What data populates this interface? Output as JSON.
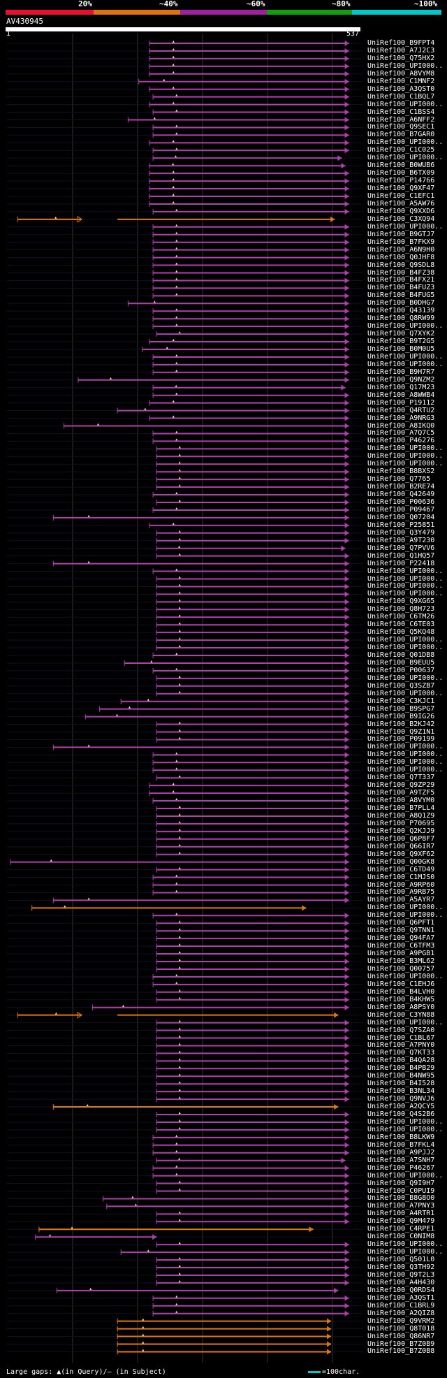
{
  "query": {
    "name": "AV430945",
    "start_label": "1",
    "end_label": "537"
  },
  "legend": {
    "stops": [
      "20%",
      "~40%",
      "~60%",
      "~80%",
      "~100%"
    ],
    "colors": [
      "#e8102c",
      "#e07010",
      "#a020a0",
      "#10a010",
      "#00c8c8"
    ]
  },
  "footer": {
    "gaps_text": "Large gaps: ▲(in Query)/– (in Subject)",
    "scale_text": "=100char."
  },
  "colors": {
    "identity_60": "#b040b0",
    "identity_40": "#e07818",
    "gap_marker": "#ffe890",
    "grid": "#333333"
  },
  "hits": [
    {
      "label": "UniRef100_B9FPT4",
      "s": 0.4,
      "e": 0.96,
      "t": "m"
    },
    {
      "label": "UniRef100_A7J2C3",
      "s": 0.4,
      "e": 0.96,
      "t": "m"
    },
    {
      "label": "UniRef100_Q75HX2",
      "s": 0.4,
      "e": 0.96,
      "t": "m"
    },
    {
      "label": "UniRef100_UPI000..",
      "s": 0.4,
      "e": 0.96,
      "t": "m"
    },
    {
      "label": "UniRef100_A8VYM8",
      "s": 0.4,
      "e": 0.96,
      "t": "m"
    },
    {
      "label": "UniRef100_C1MNF2",
      "s": 0.37,
      "e": 0.96,
      "t": "m"
    },
    {
      "label": "UniRef100_A3QST0",
      "s": 0.4,
      "e": 0.96,
      "t": "m"
    },
    {
      "label": "UniRef100_C1BQL7",
      "s": 0.41,
      "e": 0.96,
      "t": "m"
    },
    {
      "label": "UniRef100_UPI000..",
      "s": 0.4,
      "e": 0.96,
      "t": "m"
    },
    {
      "label": "UniRef100_C1BSS4",
      "s": 0.41,
      "e": 0.96,
      "t": "m"
    },
    {
      "label": "UniRef100_A6NFF2",
      "s": 0.34,
      "e": 0.96,
      "t": "m"
    },
    {
      "label": "UniRef100_Q9SEC1",
      "s": 0.41,
      "e": 0.96,
      "t": "m"
    },
    {
      "label": "UniRef100_B7GAR0",
      "s": 0.41,
      "e": 0.96,
      "t": "m"
    },
    {
      "label": "UniRef100_UPI000..",
      "s": 0.4,
      "e": 0.96,
      "t": "m"
    },
    {
      "label": "UniRef100_C1C025",
      "s": 0.41,
      "e": 0.96,
      "t": "m"
    },
    {
      "label": "UniRef100_UPI000..",
      "s": 0.41,
      "e": 0.94,
      "t": "m"
    },
    {
      "label": "UniRef100_B0WUB6",
      "s": 0.4,
      "e": 0.95,
      "t": "m"
    },
    {
      "label": "UniRef100_B6TX09",
      "s": 0.4,
      "e": 0.96,
      "t": "m"
    },
    {
      "label": "UniRef100_P14766",
      "s": 0.4,
      "e": 0.96,
      "t": "m"
    },
    {
      "label": "UniRef100_Q9XF47",
      "s": 0.4,
      "e": 0.96,
      "t": "m"
    },
    {
      "label": "UniRef100_C1EFC1",
      "s": 0.4,
      "e": 0.96,
      "t": "m"
    },
    {
      "label": "UniRef100_A5AW76",
      "s": 0.4,
      "e": 0.96,
      "t": "m"
    },
    {
      "label": "UniRef100_Q9XXD6",
      "s": 0.41,
      "e": 0.96,
      "t": "m"
    },
    {
      "label": "UniRef100_C3XQ94",
      "s": 0.03,
      "e": 0.92,
      "t": "o",
      "gap": [
        0.21,
        0.31
      ]
    },
    {
      "label": "UniRef100_UPI000..",
      "s": 0.41,
      "e": 0.96,
      "t": "m"
    },
    {
      "label": "UniRef100_B9GTJ7",
      "s": 0.41,
      "e": 0.96,
      "t": "m"
    },
    {
      "label": "UniRef100_B7FKX9",
      "s": 0.41,
      "e": 0.96,
      "t": "m"
    },
    {
      "label": "UniRef100_A6N9H0",
      "s": 0.41,
      "e": 0.96,
      "t": "m"
    },
    {
      "label": "UniRef100_Q0JHF8",
      "s": 0.41,
      "e": 0.96,
      "t": "m"
    },
    {
      "label": "UniRef100_Q9SDL8",
      "s": 0.41,
      "e": 0.96,
      "t": "m"
    },
    {
      "label": "UniRef100_B4FZ38",
      "s": 0.41,
      "e": 0.96,
      "t": "m"
    },
    {
      "label": "UniRef100_B4FX21",
      "s": 0.41,
      "e": 0.96,
      "t": "m"
    },
    {
      "label": "UniRef100_B4FUZ3",
      "s": 0.41,
      "e": 0.96,
      "t": "m"
    },
    {
      "label": "UniRef100_B4FUG5",
      "s": 0.41,
      "e": 0.96,
      "t": "m"
    },
    {
      "label": "UniRef100_B0DHG7",
      "s": 0.34,
      "e": 0.96,
      "t": "m"
    },
    {
      "label": "UniRef100_Q43139",
      "s": 0.41,
      "e": 0.96,
      "t": "m"
    },
    {
      "label": "UniRef100_Q8RW99",
      "s": 0.41,
      "e": 0.96,
      "t": "m"
    },
    {
      "label": "UniRef100_UPI000..",
      "s": 0.41,
      "e": 0.96,
      "t": "m"
    },
    {
      "label": "UniRef100_Q7XYK2",
      "s": 0.42,
      "e": 0.96,
      "t": "m"
    },
    {
      "label": "UniRef100_B9T2G5",
      "s": 0.4,
      "e": 0.96,
      "t": "m"
    },
    {
      "label": "UniRef100_B0M0U5",
      "s": 0.38,
      "e": 0.96,
      "t": "m"
    },
    {
      "label": "UniRef100_UPI000..",
      "s": 0.41,
      "e": 0.96,
      "t": "m"
    },
    {
      "label": "UniRef100_UPI000..",
      "s": 0.41,
      "e": 0.96,
      "t": "m"
    },
    {
      "label": "UniRef100_B9H7R7",
      "s": 0.41,
      "e": 0.96,
      "t": "m"
    },
    {
      "label": "UniRef100_Q9NZM2",
      "s": 0.2,
      "e": 0.96,
      "t": "m"
    },
    {
      "label": "UniRef100_Q17M23",
      "s": 0.41,
      "e": 0.95,
      "t": "m"
    },
    {
      "label": "UniRef100_A8WWB4",
      "s": 0.41,
      "e": 0.96,
      "t": "m"
    },
    {
      "label": "UniRef100_P19112",
      "s": 0.4,
      "e": 0.96,
      "t": "m"
    },
    {
      "label": "UniRef100_Q4RTU2",
      "s": 0.31,
      "e": 0.96,
      "t": "m"
    },
    {
      "label": "UniRef100_A9NRG3",
      "s": 0.4,
      "e": 0.96,
      "t": "m"
    },
    {
      "label": "UniRef100_A8IKQ0",
      "s": 0.16,
      "e": 0.96,
      "t": "m"
    },
    {
      "label": "UniRef100_A7Q7C5",
      "s": 0.41,
      "e": 0.96,
      "t": "m"
    },
    {
      "label": "UniRef100_P46276",
      "s": 0.41,
      "e": 0.96,
      "t": "m"
    },
    {
      "label": "UniRef100_UPI000..",
      "s": 0.42,
      "e": 0.96,
      "t": "m"
    },
    {
      "label": "UniRef100_UPI000..",
      "s": 0.42,
      "e": 0.96,
      "t": "m"
    },
    {
      "label": "UniRef100_UPI000..",
      "s": 0.42,
      "e": 0.96,
      "t": "m"
    },
    {
      "label": "UniRef100_B8BXS2",
      "s": 0.42,
      "e": 0.96,
      "t": "m"
    },
    {
      "label": "UniRef100_Q7765",
      "s": 0.42,
      "e": 0.96,
      "t": "m"
    },
    {
      "label": "UniRef100_B2RE74",
      "s": 0.42,
      "e": 0.96,
      "t": "m"
    },
    {
      "label": "UniRef100_Q42649",
      "s": 0.41,
      "e": 0.96,
      "t": "m"
    },
    {
      "label": "UniRef100_P00636",
      "s": 0.42,
      "e": 0.96,
      "t": "m"
    },
    {
      "label": "UniRef100_P09467",
      "s": 0.41,
      "e": 0.96,
      "t": "m"
    },
    {
      "label": "UniRef100_Q07204",
      "s": 0.13,
      "e": 0.96,
      "t": "m"
    },
    {
      "label": "UniRef100_P25851",
      "s": 0.4,
      "e": 0.96,
      "t": "m"
    },
    {
      "label": "UniRef100_Q3Y479",
      "s": 0.42,
      "e": 0.96,
      "t": "m"
    },
    {
      "label": "UniRef100_A9T230",
      "s": 0.42,
      "e": 0.96,
      "t": "m"
    },
    {
      "label": "UniRef100_Q7PVV6",
      "s": 0.42,
      "e": 0.95,
      "t": "m"
    },
    {
      "label": "UniRef100_Q1HQ57",
      "s": 0.42,
      "e": 0.96,
      "t": "m"
    },
    {
      "label": "UniRef100_P22418",
      "s": 0.13,
      "e": 0.96,
      "t": "m"
    },
    {
      "label": "UniRef100_UPI000..",
      "s": 0.41,
      "e": 0.96,
      "t": "m"
    },
    {
      "label": "UniRef100_UPI000..",
      "s": 0.42,
      "e": 0.96,
      "t": "m"
    },
    {
      "label": "UniRef100_UPI000..",
      "s": 0.42,
      "e": 0.96,
      "t": "m"
    },
    {
      "label": "UniRef100_UPI000..",
      "s": 0.42,
      "e": 0.96,
      "t": "m"
    },
    {
      "label": "UniRef100_Q9XG65",
      "s": 0.42,
      "e": 0.96,
      "t": "m"
    },
    {
      "label": "UniRef100_Q8H723",
      "s": 0.42,
      "e": 0.96,
      "t": "m"
    },
    {
      "label": "UniRef100_C6TM26",
      "s": 0.42,
      "e": 0.96,
      "t": "m"
    },
    {
      "label": "UniRef100_C6TE03",
      "s": 0.42,
      "e": 0.96,
      "t": "m"
    },
    {
      "label": "UniRef100_Q5KQ48",
      "s": 0.42,
      "e": 0.96,
      "t": "m"
    },
    {
      "label": "UniRef100_UPI000..",
      "s": 0.42,
      "e": 0.96,
      "t": "m"
    },
    {
      "label": "UniRef100_UPI000..",
      "s": 0.42,
      "e": 0.96,
      "t": "m"
    },
    {
      "label": "UniRef100_Q01DB8",
      "s": 0.41,
      "e": 0.96,
      "t": "m"
    },
    {
      "label": "UniRef100_B9EUU5",
      "s": 0.33,
      "e": 0.96,
      "t": "m"
    },
    {
      "label": "UniRef100_P00637",
      "s": 0.41,
      "e": 0.96,
      "t": "m"
    },
    {
      "label": "UniRef100_UPI000..",
      "s": 0.42,
      "e": 0.96,
      "t": "m"
    },
    {
      "label": "UniRef100_Q3SZB7",
      "s": 0.42,
      "e": 0.96,
      "t": "m"
    },
    {
      "label": "UniRef100_UPI000..",
      "s": 0.42,
      "e": 0.96,
      "t": "m"
    },
    {
      "label": "UniRef100_C3KJC1",
      "s": 0.32,
      "e": 0.96,
      "t": "m"
    },
    {
      "label": "UniRef100_B9SPG7",
      "s": 0.26,
      "e": 0.96,
      "t": "m"
    },
    {
      "label": "UniRef100_B9IG26",
      "s": 0.22,
      "e": 0.96,
      "t": "m"
    },
    {
      "label": "UniRef100_B2KJ42",
      "s": 0.42,
      "e": 0.96,
      "t": "m"
    },
    {
      "label": "UniRef100_Q9Z1N1",
      "s": 0.42,
      "e": 0.96,
      "t": "m"
    },
    {
      "label": "UniRef100_P09199",
      "s": 0.42,
      "e": 0.96,
      "t": "m"
    },
    {
      "label": "UniRef100_UPI000..",
      "s": 0.13,
      "e": 0.96,
      "t": "m"
    },
    {
      "label": "UniRef100_UPI000..",
      "s": 0.41,
      "e": 0.96,
      "t": "m"
    },
    {
      "label": "UniRef100_UPI000..",
      "s": 0.41,
      "e": 0.96,
      "t": "m"
    },
    {
      "label": "UniRef100_UPI000..",
      "s": 0.41,
      "e": 0.96,
      "t": "m"
    },
    {
      "label": "UniRef100_Q7T337",
      "s": 0.42,
      "e": 0.96,
      "t": "m"
    },
    {
      "label": "UniRef100_Q9ZP29",
      "s": 0.4,
      "e": 0.96,
      "t": "m"
    },
    {
      "label": "UniRef100_A9TZF5",
      "s": 0.4,
      "e": 0.96,
      "t": "m"
    },
    {
      "label": "UniRef100_A8VYM0",
      "s": 0.41,
      "e": 0.96,
      "t": "m"
    },
    {
      "label": "UniRef100_B7PLL4",
      "s": 0.42,
      "e": 0.96,
      "t": "m"
    },
    {
      "label": "UniRef100_A8Q1Z9",
      "s": 0.42,
      "e": 0.96,
      "t": "m"
    },
    {
      "label": "UniRef100_P70695",
      "s": 0.42,
      "e": 0.96,
      "t": "m"
    },
    {
      "label": "UniRef100_Q2KJJ9",
      "s": 0.42,
      "e": 0.96,
      "t": "m"
    },
    {
      "label": "UniRef100_Q6P8F7",
      "s": 0.42,
      "e": 0.96,
      "t": "m"
    },
    {
      "label": "UniRef100_Q66IR7",
      "s": 0.42,
      "e": 0.96,
      "t": "m"
    },
    {
      "label": "UniRef100_Q9XF62",
      "s": 0.42,
      "e": 0.96,
      "t": "m"
    },
    {
      "label": "UniRef100_Q00GK8",
      "s": 0.01,
      "e": 0.96,
      "t": "m"
    },
    {
      "label": "UniRef100_C6TD49",
      "s": 0.42,
      "e": 0.96,
      "t": "m"
    },
    {
      "label": "UniRef100_C1MJS0",
      "s": 0.41,
      "e": 0.96,
      "t": "m"
    },
    {
      "label": "UniRef100_A9RP60",
      "s": 0.41,
      "e": 0.96,
      "t": "m"
    },
    {
      "label": "UniRef100_A9RB75",
      "s": 0.41,
      "e": 0.96,
      "t": "m"
    },
    {
      "label": "UniRef100_A5AYR7",
      "s": 0.13,
      "e": 0.96,
      "t": "m"
    },
    {
      "label": "UniRef100_UPI000..",
      "s": 0.07,
      "e": 0.84,
      "t": "o"
    },
    {
      "label": "UniRef100_UPI000..",
      "s": 0.41,
      "e": 0.96,
      "t": "m"
    },
    {
      "label": "UniRef100_Q6PFT1",
      "s": 0.42,
      "e": 0.96,
      "t": "m"
    },
    {
      "label": "UniRef100_Q9TNN1",
      "s": 0.42,
      "e": 0.96,
      "t": "m"
    },
    {
      "label": "UniRef100_Q94FA7",
      "s": 0.42,
      "e": 0.96,
      "t": "m"
    },
    {
      "label": "UniRef100_C6TFM3",
      "s": 0.42,
      "e": 0.96,
      "t": "m"
    },
    {
      "label": "UniRef100_A9PGB1",
      "s": 0.42,
      "e": 0.96,
      "t": "m"
    },
    {
      "label": "UniRef100_B3ML62",
      "s": 0.42,
      "e": 0.96,
      "t": "m"
    },
    {
      "label": "UniRef100_Q00757",
      "s": 0.42,
      "e": 0.96,
      "t": "m"
    },
    {
      "label": "UniRef100_UPI000..",
      "s": 0.41,
      "e": 0.96,
      "t": "m"
    },
    {
      "label": "UniRef100_C1EHJ6",
      "s": 0.41,
      "e": 0.96,
      "t": "m"
    },
    {
      "label": "UniRef100_B4LVH0",
      "s": 0.42,
      "e": 0.96,
      "t": "m"
    },
    {
      "label": "UniRef100_B4KHW5",
      "s": 0.42,
      "e": 0.96,
      "t": "m"
    },
    {
      "label": "UniRef100_A8PSY0",
      "s": 0.24,
      "e": 0.96,
      "t": "m"
    },
    {
      "label": "UniRef100_C3YN88",
      "s": 0.03,
      "e": 0.93,
      "t": "o",
      "gap": [
        0.21,
        0.31
      ]
    },
    {
      "label": "UniRef100_UPI000..",
      "s": 0.42,
      "e": 0.96,
      "t": "m"
    },
    {
      "label": "UniRef100_Q7SZA0",
      "s": 0.42,
      "e": 0.96,
      "t": "m"
    },
    {
      "label": "UniRef100_C1BL67",
      "s": 0.42,
      "e": 0.96,
      "t": "m"
    },
    {
      "label": "UniRef100_A7PNY0",
      "s": 0.42,
      "e": 0.96,
      "t": "m"
    },
    {
      "label": "UniRef100_Q7KT33",
      "s": 0.42,
      "e": 0.96,
      "t": "m"
    },
    {
      "label": "UniRef100_B4QA28",
      "s": 0.42,
      "e": 0.96,
      "t": "m"
    },
    {
      "label": "UniRef100_B4PB29",
      "s": 0.42,
      "e": 0.96,
      "t": "m"
    },
    {
      "label": "UniRef100_B4NW95",
      "s": 0.42,
      "e": 0.96,
      "t": "m"
    },
    {
      "label": "UniRef100_B4I528",
      "s": 0.42,
      "e": 0.96,
      "t": "m"
    },
    {
      "label": "UniRef100_B3NL34",
      "s": 0.42,
      "e": 0.96,
      "t": "m"
    },
    {
      "label": "UniRef100_Q9NVJ6",
      "s": 0.42,
      "e": 0.96,
      "t": "m"
    },
    {
      "label": "UniRef100_A2QCY5",
      "s": 0.13,
      "e": 0.93,
      "t": "o"
    },
    {
      "label": "UniRef100_Q4S2B6",
      "s": 0.42,
      "e": 0.96,
      "t": "m"
    },
    {
      "label": "UniRef100_UPI000..",
      "s": 0.42,
      "e": 0.96,
      "t": "m"
    },
    {
      "label": "UniRef100_UPI000..",
      "s": 0.42,
      "e": 0.96,
      "t": "m"
    },
    {
      "label": "UniRef100_B8LKW9",
      "s": 0.41,
      "e": 0.96,
      "t": "m"
    },
    {
      "label": "UniRef100_B7FKL4",
      "s": 0.41,
      "e": 0.96,
      "t": "m"
    },
    {
      "label": "UniRef100_A9PJJ2",
      "s": 0.41,
      "e": 0.96,
      "t": "m"
    },
    {
      "label": "UniRef100_A7SNH7",
      "s": 0.42,
      "e": 0.95,
      "t": "m"
    },
    {
      "label": "UniRef100_P46267",
      "s": 0.41,
      "e": 0.96,
      "t": "m"
    },
    {
      "label": "UniRef100_UPI000..",
      "s": 0.41,
      "e": 0.96,
      "t": "m"
    },
    {
      "label": "UniRef100_Q9I9H7",
      "s": 0.42,
      "e": 0.96,
      "t": "m"
    },
    {
      "label": "UniRef100_C0PUI9",
      "s": 0.42,
      "e": 0.96,
      "t": "m"
    },
    {
      "label": "UniRef100_B8G8O0",
      "s": 0.27,
      "e": 0.96,
      "t": "m"
    },
    {
      "label": "UniRef100_A7PNY3",
      "s": 0.28,
      "e": 0.96,
      "t": "m"
    },
    {
      "label": "UniRef100_A4RTR1",
      "s": 0.42,
      "e": 0.96,
      "t": "m"
    },
    {
      "label": "UniRef100_Q9M479",
      "s": 0.42,
      "e": 0.96,
      "t": "m"
    },
    {
      "label": "UniRef100_C4RPE1",
      "s": 0.09,
      "e": 0.86,
      "t": "o"
    },
    {
      "label": "UniRef100_C0NIM8",
      "s": 0.08,
      "e": 0.42,
      "t": "m"
    },
    {
      "label": "UniRef100_UPI000..",
      "s": 0.42,
      "e": 0.96,
      "t": "m"
    },
    {
      "label": "UniRef100_UPI000..",
      "s": 0.32,
      "e": 0.96,
      "t": "m"
    },
    {
      "label": "UniRef100_Q501L0",
      "s": 0.42,
      "e": 0.96,
      "t": "m"
    },
    {
      "label": "UniRef100_Q3TH92",
      "s": 0.42,
      "e": 0.96,
      "t": "m"
    },
    {
      "label": "UniRef100_Q9T2L3",
      "s": 0.42,
      "e": 0.96,
      "t": "m"
    },
    {
      "label": "UniRef100_A4H430",
      "s": 0.42,
      "e": 0.96,
      "t": "m"
    },
    {
      "label": "UniRef100_Q0RDS4",
      "s": 0.14,
      "e": 0.93,
      "t": "m"
    },
    {
      "label": "UniRef100_A3QST1",
      "s": 0.41,
      "e": 0.96,
      "t": "m"
    },
    {
      "label": "UniRef100_C1BRL9",
      "s": 0.41,
      "e": 0.96,
      "t": "m"
    },
    {
      "label": "UniRef100_A2QIZ8",
      "s": 0.41,
      "e": 0.96,
      "t": "m"
    },
    {
      "label": "UniRef100_Q9VRM2",
      "s": 0.31,
      "e": 0.91,
      "t": "o"
    },
    {
      "label": "UniRef100_Q8T018",
      "s": 0.31,
      "e": 0.91,
      "t": "o"
    },
    {
      "label": "UniRef100_Q86NR7",
      "s": 0.31,
      "e": 0.91,
      "t": "o"
    },
    {
      "label": "UniRef100_B7Z0B9",
      "s": 0.31,
      "e": 0.91,
      "t": "o"
    },
    {
      "label": "UniRef100_B7Z0B8",
      "s": 0.31,
      "e": 0.91,
      "t": "o"
    }
  ]
}
